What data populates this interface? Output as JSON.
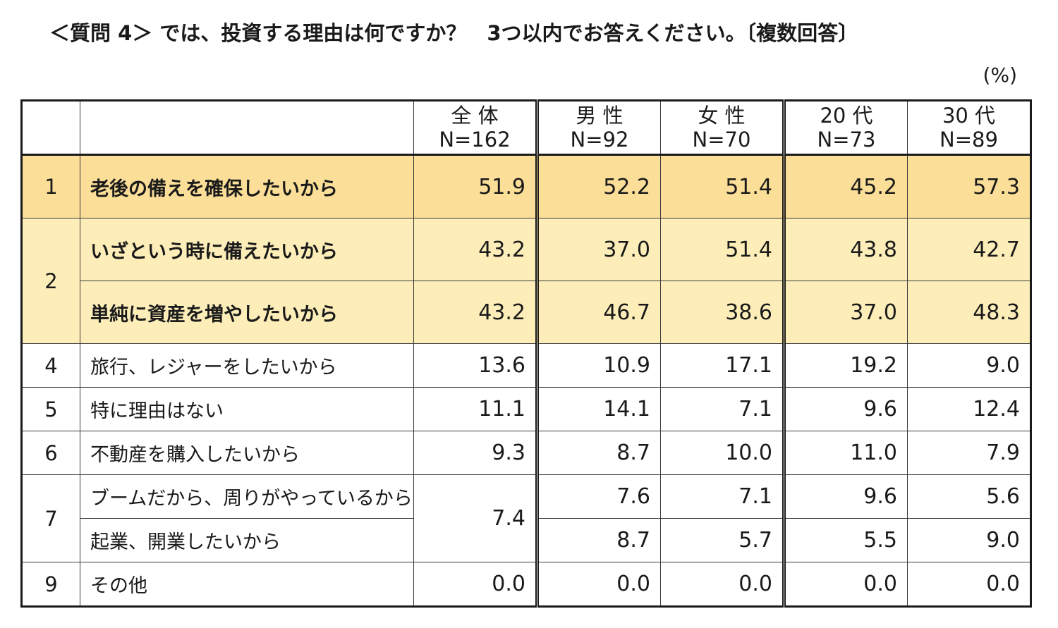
{
  "title": "＜質問 4＞ では、投資する理由は何ですか？　3つ以内でお答えください。〔複数回答〕",
  "unit": "(%)",
  "header": {
    "cols": [
      {
        "label": "全 体",
        "n": "N=162"
      },
      {
        "label": "男 性",
        "n": "N=92"
      },
      {
        "label": "女 性",
        "n": "N=70"
      },
      {
        "label": "20 代",
        "n": "N=73"
      },
      {
        "label": "30 代",
        "n": "N=89"
      }
    ]
  },
  "rows": [
    {
      "rank": "1",
      "reason": "老後の備えを確保したいから",
      "values": [
        "51.9",
        "52.2",
        "51.4",
        "45.2",
        "57.3"
      ]
    },
    {
      "rank": "2",
      "reason": "いざという時に備えたいから",
      "values": [
        "43.2",
        "37.0",
        "51.4",
        "43.8",
        "42.7"
      ]
    },
    {
      "rank": "",
      "reason": "単純に資産を増やしたいから",
      "values": [
        "43.2",
        "46.7",
        "38.6",
        "37.0",
        "48.3"
      ]
    },
    {
      "rank": "4",
      "reason": "旅行、レジャーをしたいから",
      "values": [
        "13.6",
        "10.9",
        "17.1",
        "19.2",
        "9.0"
      ]
    },
    {
      "rank": "5",
      "reason": "特に理由はない",
      "values": [
        "11.1",
        "14.1",
        "7.1",
        "9.6",
        "12.4"
      ]
    },
    {
      "rank": "6",
      "reason": "不動産を購入したいから",
      "values": [
        "9.3",
        "8.7",
        "10.0",
        "11.0",
        "7.9"
      ]
    },
    {
      "rank": "7",
      "reason": "ブームだから、周りがやっているから",
      "values": [
        "7.4",
        "7.6",
        "7.1",
        "9.6",
        "5.6"
      ]
    },
    {
      "rank": "",
      "reason": "起業、開業したいから",
      "values": [
        "",
        "8.7",
        "5.7",
        "5.5",
        "9.0"
      ]
    },
    {
      "rank": "9",
      "reason": "その他",
      "values": [
        "0.0",
        "0.0",
        "0.0",
        "0.0",
        "0.0"
      ]
    }
  ],
  "colors": {
    "highlight_top": "#fbde97",
    "highlight": "#fdeeb9"
  }
}
